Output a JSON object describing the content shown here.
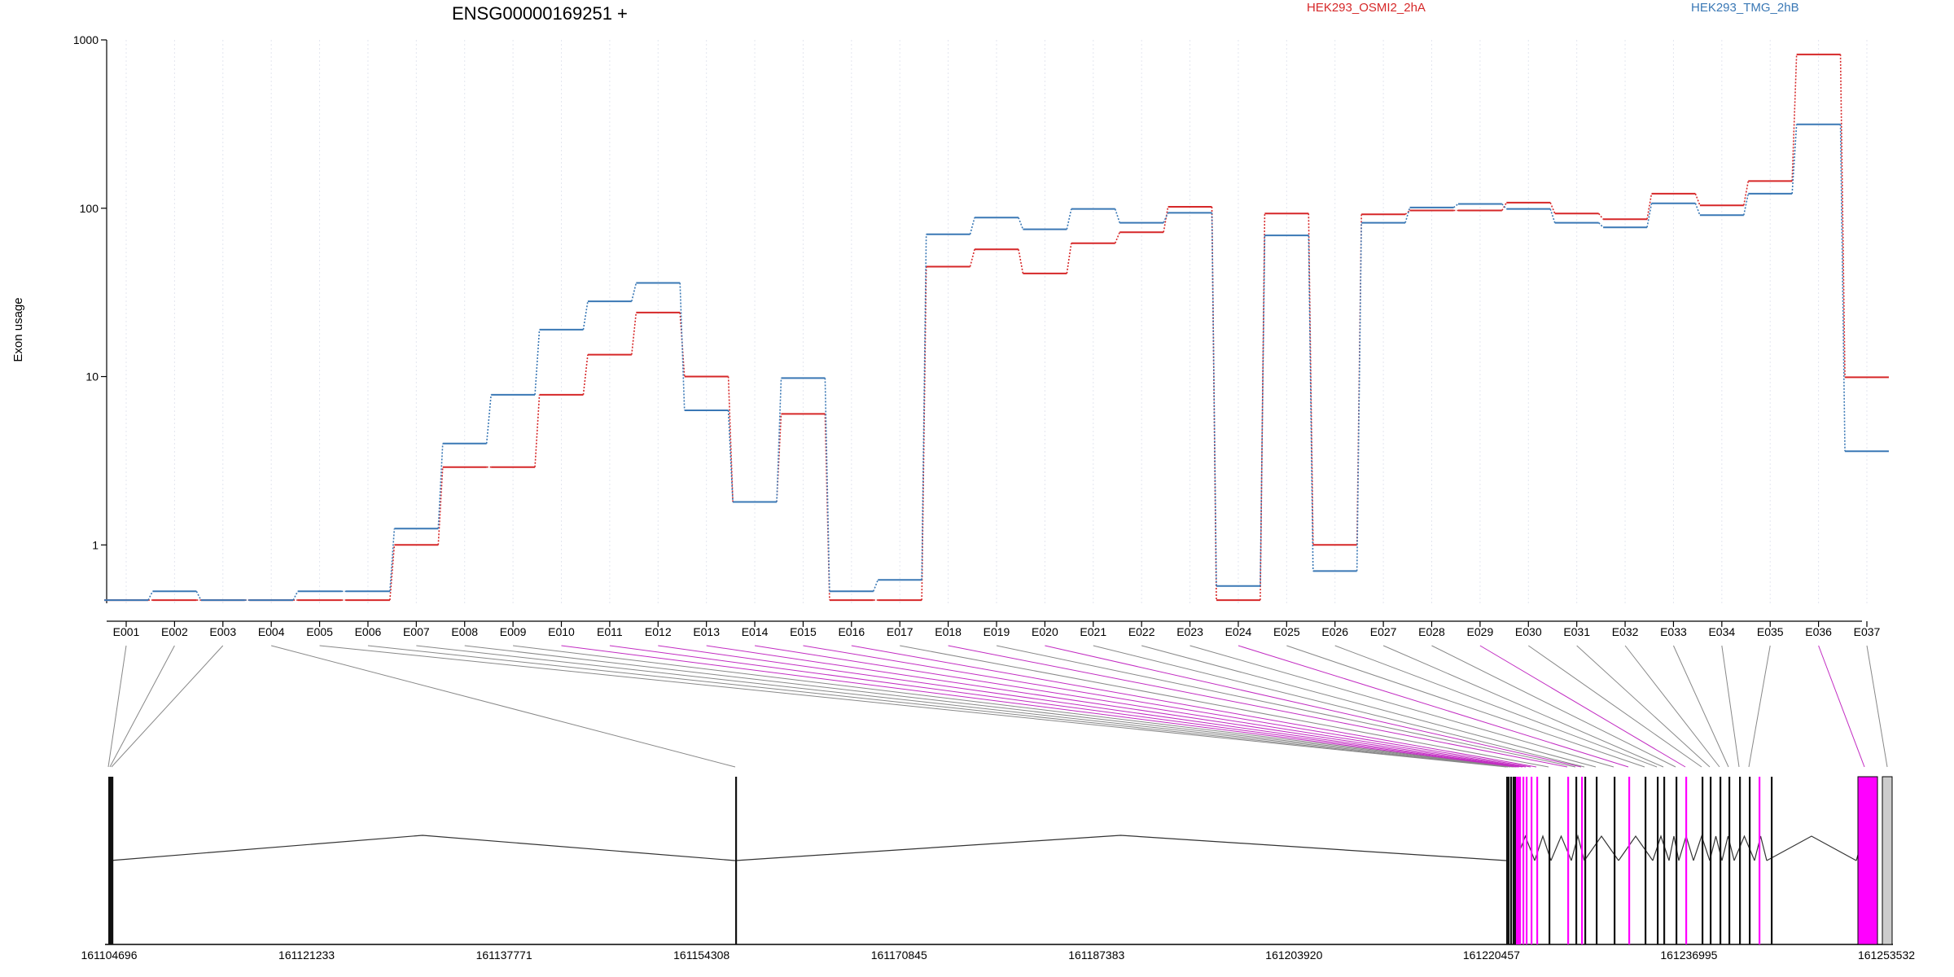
{
  "chart_data": {
    "type": "line",
    "title": "ENSG00000169251 +",
    "xlabel": "",
    "ylabel": "Exon usage",
    "yscale": "log",
    "ylim": [
      0.45,
      1000
    ],
    "yticks": [
      1,
      10,
      100,
      1000
    ],
    "ytick_labels": [
      "1",
      "10",
      "100",
      "1000"
    ],
    "grid": "vertical dotted",
    "legend_placement": "top",
    "categories": [
      "E001",
      "E002",
      "E003",
      "E004",
      "E005",
      "E006",
      "E007",
      "E008",
      "E009",
      "E010",
      "E011",
      "E012",
      "E013",
      "E014",
      "E015",
      "E016",
      "E017",
      "E018",
      "E019",
      "E020",
      "E021",
      "E022",
      "E023",
      "E024",
      "E025",
      "E026",
      "E027",
      "E028",
      "E029",
      "E030",
      "E031",
      "E032",
      "E033",
      "E034",
      "E035",
      "E036",
      "E037"
    ],
    "series": [
      {
        "name": "HEK293_OSMI2_2hA",
        "color": "#d62728",
        "values": [
          0.47,
          0.47,
          0.47,
          0.47,
          0.47,
          0.47,
          1.0,
          2.9,
          2.9,
          7.8,
          13.5,
          24,
          10,
          1.8,
          6,
          0.47,
          0.47,
          45,
          57,
          41,
          62,
          72,
          102,
          0.47,
          93,
          1.0,
          92,
          97,
          97,
          108,
          93,
          86,
          122,
          104,
          145,
          820,
          9.9
        ]
      },
      {
        "name": "HEK293_TMG_2hB",
        "color": "#3a78b5",
        "values": [
          0.47,
          0.53,
          0.47,
          0.47,
          0.53,
          0.53,
          1.25,
          4,
          7.8,
          19,
          28,
          36,
          6.3,
          1.8,
          9.8,
          0.53,
          0.62,
          70,
          88,
          75,
          99,
          82,
          94,
          0.57,
          69,
          0.7,
          82,
          101,
          106,
          99,
          82,
          77,
          107,
          91,
          122,
          315,
          3.6
        ]
      }
    ],
    "gene_model": {
      "coordinate_labels": [
        "161104696",
        "161121233",
        "161137771",
        "161154308",
        "161170845",
        "161187383",
        "161203920",
        "161220457",
        "161236995",
        "161253532"
      ],
      "highlight_color": "#ff00ff"
    }
  }
}
